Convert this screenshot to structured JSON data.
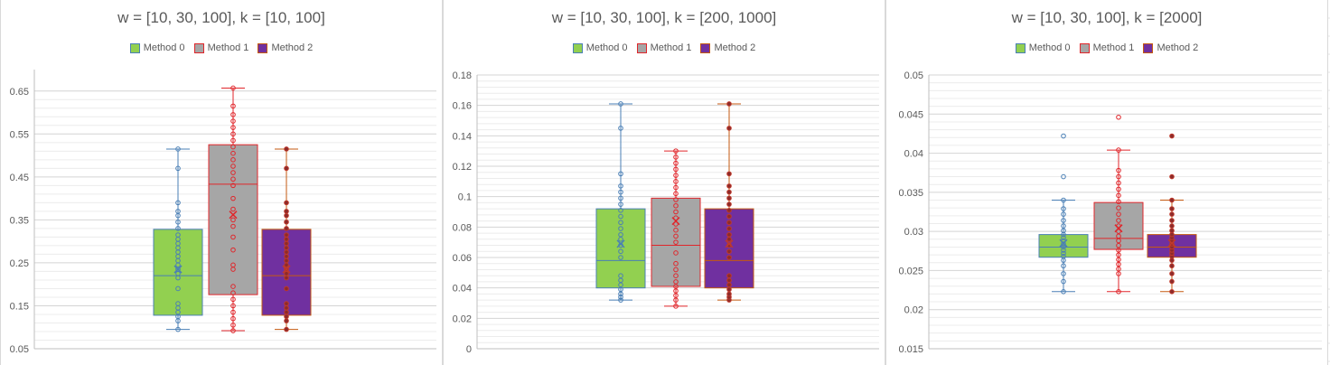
{
  "colors": {
    "method0": {
      "fill": "#92d050",
      "stroke": "#4a7fb5",
      "median": "#4a7fb5",
      "marker": "#4a7fb5"
    },
    "method1": {
      "fill": "#a6a6a6",
      "stroke": "#e0262b",
      "median": "#e0262b",
      "marker": "#e0262b"
    },
    "method2": {
      "fill": "#7030a0",
      "stroke": "#c55a11",
      "median": "#c55a11",
      "marker": "#c0392b"
    }
  },
  "legend": [
    "Method 0",
    "Method 1",
    "Method 2"
  ],
  "chart_data": [
    {
      "type": "box",
      "title": "w = [10, 30, 100], k = [10, 100]",
      "ylim": [
        0.05,
        0.7
      ],
      "yticks": [
        0.05,
        0.15,
        0.25,
        0.35,
        0.45,
        0.55,
        0.65
      ],
      "ytick_labels": [
        "0.05",
        "0.15",
        "0.25",
        "0.35",
        "0.45",
        "0.55",
        "0.65"
      ],
      "grid": "major+minor",
      "legend_position": "top",
      "series": [
        {
          "name": "Method 0",
          "min": 0.095,
          "q1": 0.128,
          "median": 0.22,
          "q3": 0.328,
          "max": 0.515,
          "mean": 0.235,
          "points": [
            0.095,
            0.115,
            0.125,
            0.135,
            0.145,
            0.155,
            0.19,
            0.215,
            0.225,
            0.235,
            0.245,
            0.255,
            0.265,
            0.275,
            0.285,
            0.295,
            0.305,
            0.315,
            0.33,
            0.345,
            0.36,
            0.37,
            0.39,
            0.47,
            0.515
          ]
        },
        {
          "name": "Method 1",
          "min": 0.092,
          "q1": 0.176,
          "median": 0.433,
          "q3": 0.525,
          "max": 0.657,
          "mean": 0.362,
          "points": [
            0.092,
            0.105,
            0.12,
            0.135,
            0.15,
            0.165,
            0.18,
            0.195,
            0.235,
            0.245,
            0.28,
            0.31,
            0.335,
            0.35,
            0.375,
            0.4,
            0.43,
            0.445,
            0.46,
            0.475,
            0.49,
            0.505,
            0.52,
            0.535,
            0.55,
            0.565,
            0.58,
            0.595,
            0.615,
            0.657
          ]
        },
        {
          "name": "Method 2",
          "min": 0.095,
          "q1": 0.128,
          "median": 0.22,
          "q3": 0.328,
          "max": 0.515,
          "mean": 0.235,
          "points": [
            0.095,
            0.115,
            0.125,
            0.135,
            0.145,
            0.155,
            0.19,
            0.215,
            0.225,
            0.235,
            0.245,
            0.255,
            0.265,
            0.275,
            0.285,
            0.295,
            0.305,
            0.315,
            0.33,
            0.345,
            0.36,
            0.37,
            0.39,
            0.47,
            0.515
          ]
        }
      ]
    },
    {
      "type": "box",
      "title": "w = [10, 30, 100], k = [200, 1000]",
      "ylim": [
        0,
        0.18
      ],
      "yticks": [
        0,
        0.02,
        0.04,
        0.06,
        0.08,
        0.1,
        0.12,
        0.14,
        0.16,
        0.18
      ],
      "ytick_labels": [
        "0",
        "0.02",
        "0.04",
        "0.06",
        "0.08",
        "0.1",
        "0.12",
        "0.14",
        "0.16",
        "0.18"
      ],
      "grid": "major+minor",
      "legend_position": "top",
      "series": [
        {
          "name": "Method 0",
          "min": 0.032,
          "q1": 0.04,
          "median": 0.058,
          "q3": 0.092,
          "max": 0.161,
          "mean": 0.069,
          "points": [
            0.032,
            0.034,
            0.036,
            0.039,
            0.042,
            0.045,
            0.048,
            0.06,
            0.064,
            0.068,
            0.072,
            0.075,
            0.079,
            0.083,
            0.087,
            0.091,
            0.095,
            0.099,
            0.103,
            0.107,
            0.115,
            0.145,
            0.161
          ]
        },
        {
          "name": "Method 1",
          "min": 0.028,
          "q1": 0.041,
          "median": 0.068,
          "q3": 0.099,
          "max": 0.13,
          "mean": 0.084,
          "points": [
            0.028,
            0.032,
            0.035,
            0.038,
            0.041,
            0.044,
            0.048,
            0.052,
            0.056,
            0.063,
            0.07,
            0.074,
            0.078,
            0.082,
            0.086,
            0.09,
            0.094,
            0.098,
            0.102,
            0.106,
            0.11,
            0.114,
            0.118,
            0.122,
            0.126,
            0.13
          ]
        },
        {
          "name": "Method 2",
          "min": 0.032,
          "q1": 0.04,
          "median": 0.058,
          "q3": 0.092,
          "max": 0.161,
          "mean": 0.069,
          "points": [
            0.032,
            0.034,
            0.036,
            0.039,
            0.042,
            0.045,
            0.048,
            0.06,
            0.064,
            0.068,
            0.072,
            0.075,
            0.079,
            0.083,
            0.087,
            0.091,
            0.095,
            0.099,
            0.103,
            0.107,
            0.115,
            0.145,
            0.161
          ]
        }
      ]
    },
    {
      "type": "box",
      "title": "w = [10, 30, 100], k = [2000]",
      "ylim": [
        0.015,
        0.05
      ],
      "yticks": [
        0.015,
        0.02,
        0.025,
        0.03,
        0.035,
        0.04,
        0.045,
        0.05
      ],
      "ytick_labels": [
        "0.015",
        "0.02",
        "0.025",
        "0.03",
        "0.035",
        "0.04",
        "0.045",
        "0.05"
      ],
      "grid": "major+minor",
      "legend_position": "top",
      "series": [
        {
          "name": "Method 0",
          "min": 0.0223,
          "q1": 0.0267,
          "median": 0.028,
          "q3": 0.0296,
          "max": 0.034,
          "mean": 0.0285,
          "points": [
            0.0223,
            0.0236,
            0.0246,
            0.0256,
            0.0263,
            0.0268,
            0.0272,
            0.0276,
            0.028,
            0.0284,
            0.0288,
            0.0292,
            0.0296,
            0.0301,
            0.0307,
            0.0314,
            0.0322,
            0.0329,
            0.034,
            0.037,
            0.0422
          ]
        },
        {
          "name": "Method 1",
          "min": 0.0223,
          "q1": 0.0277,
          "median": 0.0291,
          "q3": 0.0337,
          "max": 0.0404,
          "mean": 0.0304,
          "points": [
            0.0223,
            0.0246,
            0.0252,
            0.0258,
            0.0264,
            0.027,
            0.0276,
            0.0282,
            0.0288,
            0.0294,
            0.03,
            0.0307,
            0.0314,
            0.0322,
            0.033,
            0.0338,
            0.0346,
            0.0354,
            0.0362,
            0.037,
            0.0378,
            0.0404,
            0.0446
          ]
        },
        {
          "name": "Method 2",
          "min": 0.0223,
          "q1": 0.0267,
          "median": 0.028,
          "q3": 0.0296,
          "max": 0.034,
          "mean": 0.0285,
          "points": [
            0.0223,
            0.0236,
            0.0246,
            0.0256,
            0.0263,
            0.0268,
            0.0272,
            0.0276,
            0.028,
            0.0284,
            0.0288,
            0.0292,
            0.0296,
            0.0301,
            0.0307,
            0.0314,
            0.0322,
            0.0329,
            0.034,
            0.037,
            0.0422
          ]
        }
      ]
    }
  ]
}
